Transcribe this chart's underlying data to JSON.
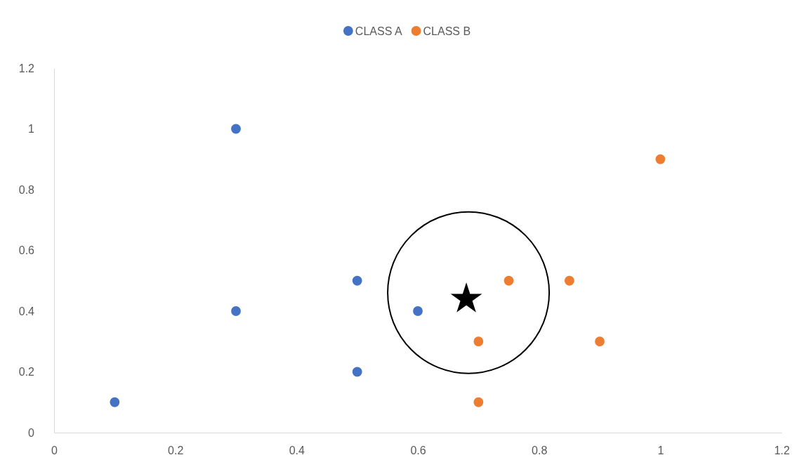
{
  "chart_data": {
    "type": "scatter",
    "xlim": [
      0,
      1.2
    ],
    "ylim": [
      0,
      1.2
    ],
    "xticks": [
      0,
      0.2,
      0.4,
      0.6,
      0.8,
      1,
      1.2
    ],
    "yticks": [
      0,
      0.2,
      0.4,
      0.6,
      0.8,
      1,
      1.2
    ],
    "grid": false,
    "legend": "top",
    "marker": "circle",
    "series": [
      {
        "name": "CLASS A",
        "color": "#4472c4",
        "x": [
          0.1,
          0.3,
          0.3,
          0.5,
          0.5,
          0.6
        ],
        "values": [
          0.1,
          1,
          0.4,
          0.5,
          0.2,
          0.4
        ]
      },
      {
        "name": "CLASS B",
        "color": "#ed7d31",
        "x": [
          0.7,
          0.7,
          0.75,
          0.85,
          0.9,
          1
        ],
        "values": [
          0.3,
          0.1,
          0.5,
          0.5,
          0.3,
          0.9
        ]
      },
      {
        "color": "#000000",
        "marker": "star",
        "x": [
          0.68
        ],
        "values": [
          0.44
        ]
      }
    ]
  }
}
